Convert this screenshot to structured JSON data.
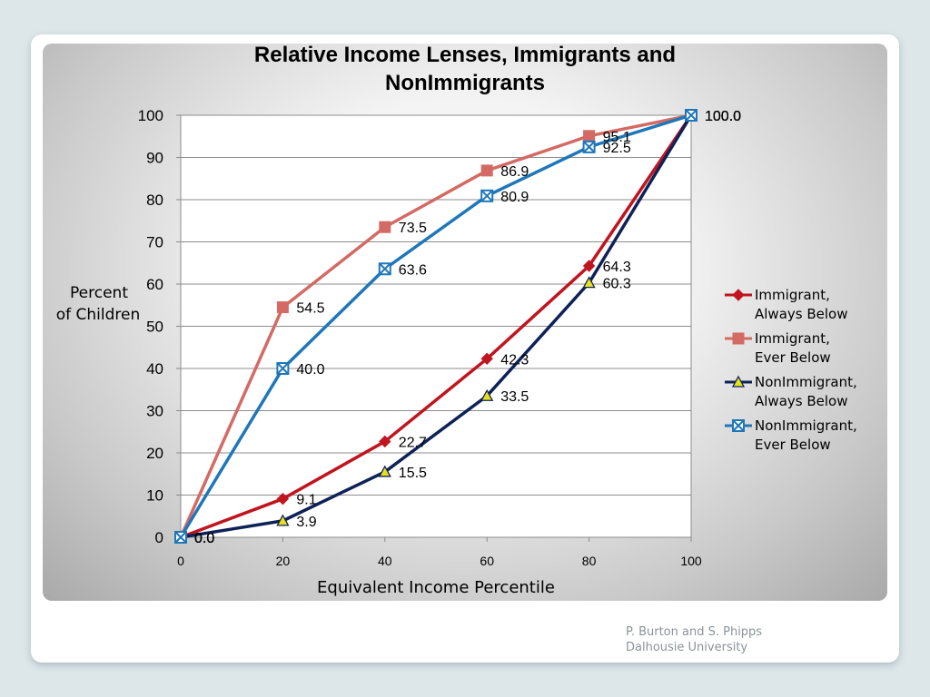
{
  "chart_data": {
    "type": "line",
    "title": "Relative Income Lenses, Immigrants and NonImmigrants",
    "title_lines": [
      "Relative Income Lenses, Immigrants and",
      "NonImmigrants"
    ],
    "xlabel": "Equivalent Income Percentile",
    "ylabel": "Percent  of  Children",
    "ylabel_lines": [
      "Percent",
      "of  Children"
    ],
    "x": [
      0,
      20,
      40,
      60,
      80,
      100
    ],
    "xlim": [
      0,
      100
    ],
    "ylim": [
      0,
      100
    ],
    "x_ticks": [
      0,
      20,
      40,
      60,
      80,
      100
    ],
    "y_ticks": [
      0,
      10,
      20,
      30,
      40,
      50,
      60,
      70,
      80,
      90,
      100
    ],
    "grid": "horizontal",
    "legend_position": "right",
    "series": [
      {
        "name": "Immigrant, Always Below",
        "legend_lines": [
          "Immigrant,",
          "Always Below"
        ],
        "values": [
          0,
          9.1,
          22.7,
          42.3,
          64.3,
          100
        ],
        "labels": [
          "0.0",
          "9.1",
          "22.7",
          "42.3",
          "64.3",
          "100.0"
        ],
        "color": "#c0151f",
        "marker": "diamond",
        "marker_color": "#c0151f"
      },
      {
        "name": "Immigrant, Ever Below",
        "legend_lines": [
          "Immigrant,",
          "Ever Below"
        ],
        "values": [
          0,
          54.5,
          73.5,
          86.9,
          95.1,
          100
        ],
        "labels": [
          "0.0",
          "54.5",
          "73.5",
          "86.9",
          "95.1",
          "100.0"
        ],
        "color": "#d46a64",
        "marker": "square",
        "marker_color": "#d46a64"
      },
      {
        "name": "NonImmigrant, Always Below",
        "legend_lines": [
          "NonImmigrant,",
          "Always Below"
        ],
        "values": [
          0,
          3.9,
          15.5,
          33.5,
          60.3,
          100
        ],
        "labels": [
          "0.0",
          "3.9",
          "15.5",
          "33.5",
          "60.3",
          "100.0"
        ],
        "color": "#0f2257",
        "marker": "triangle",
        "marker_color": "#e8e21a"
      },
      {
        "name": "NonImmigrant, Ever Below",
        "legend_lines": [
          "NonImmigrant,",
          "Ever Below"
        ],
        "values": [
          0,
          40.0,
          63.6,
          80.9,
          92.5,
          100
        ],
        "labels": [
          "0.0",
          "40.0",
          "63.6",
          "80.9",
          "92.5",
          "100.0"
        ],
        "color": "#1f77b9",
        "marker": "x-square",
        "marker_color": "#1f77b9"
      }
    ]
  },
  "credit": {
    "line1": "P. Burton and S. Phipps",
    "line2": "Dalhousie University"
  }
}
